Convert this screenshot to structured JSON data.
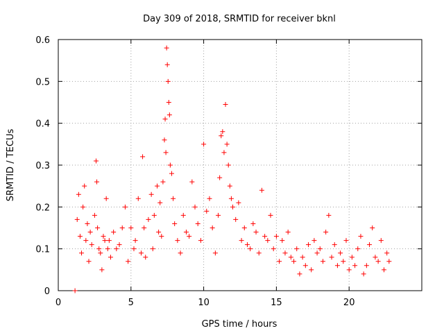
{
  "chart_data": {
    "type": "scatter",
    "title": "Day 309 of 2018, SRMTID for receiver bknl",
    "xlabel": "GPS time / hours",
    "ylabel": "SRMTID / TECUs",
    "xlim": [
      0,
      25
    ],
    "ylim": [
      0,
      0.6
    ],
    "xticks": [
      0,
      5,
      10,
      15,
      20
    ],
    "xtick_labels": [
      "0",
      "5",
      "10",
      "15",
      "20"
    ],
    "yticks": [
      0,
      0.1,
      0.2,
      0.3,
      0.4,
      0.5,
      0.6
    ],
    "ytick_labels": [
      "0",
      "0.1",
      "0.2",
      "0.3",
      "0.4",
      "0.5",
      "0.6"
    ],
    "grid": true,
    "marker": "+",
    "color": "#ff0000",
    "series": [
      {
        "name": "SRMTID",
        "x": [
          1.15,
          1.3,
          1.4,
          1.5,
          1.6,
          1.7,
          1.8,
          1.9,
          2.0,
          2.1,
          2.2,
          2.3,
          2.5,
          2.6,
          2.65,
          2.7,
          2.8,
          2.9,
          3.0,
          3.1,
          3.2,
          3.3,
          3.4,
          3.5,
          3.6,
          3.8,
          4.0,
          4.2,
          4.4,
          4.6,
          4.8,
          5.0,
          5.2,
          5.3,
          5.5,
          5.7,
          5.8,
          5.9,
          6.0,
          6.2,
          6.4,
          6.5,
          6.6,
          6.8,
          6.9,
          7.0,
          7.1,
          7.2,
          7.3,
          7.35,
          7.4,
          7.45,
          7.5,
          7.55,
          7.6,
          7.65,
          7.7,
          7.8,
          7.9,
          8.0,
          8.2,
          8.4,
          8.6,
          8.8,
          9.0,
          9.2,
          9.4,
          9.6,
          9.8,
          10.0,
          10.2,
          10.4,
          10.6,
          10.8,
          11.0,
          11.1,
          11.2,
          11.3,
          11.4,
          11.5,
          11.6,
          11.7,
          11.8,
          11.9,
          12.0,
          12.2,
          12.4,
          12.6,
          12.8,
          13.0,
          13.2,
          13.4,
          13.6,
          13.8,
          14.0,
          14.2,
          14.4,
          14.6,
          14.8,
          15.0,
          15.2,
          15.4,
          15.6,
          15.8,
          16.0,
          16.2,
          16.4,
          16.6,
          16.8,
          17.0,
          17.2,
          17.4,
          17.6,
          17.8,
          18.0,
          18.2,
          18.4,
          18.6,
          18.8,
          19.0,
          19.2,
          19.4,
          19.6,
          19.8,
          20.0,
          20.2,
          20.4,
          20.6,
          20.8,
          21.0,
          21.2,
          21.4,
          21.6,
          21.8,
          22.0,
          22.2,
          22.4,
          22.6,
          22.75
        ],
        "y": [
          0.0,
          0.17,
          0.23,
          0.13,
          0.09,
          0.2,
          0.25,
          0.12,
          0.16,
          0.07,
          0.14,
          0.11,
          0.18,
          0.31,
          0.26,
          0.15,
          0.1,
          0.09,
          0.05,
          0.13,
          0.12,
          0.22,
          0.1,
          0.12,
          0.08,
          0.14,
          0.1,
          0.11,
          0.15,
          0.2,
          0.07,
          0.15,
          0.1,
          0.12,
          0.22,
          0.09,
          0.32,
          0.15,
          0.08,
          0.17,
          0.23,
          0.1,
          0.18,
          0.25,
          0.14,
          0.21,
          0.13,
          0.26,
          0.36,
          0.41,
          0.33,
          0.58,
          0.54,
          0.5,
          0.45,
          0.42,
          0.3,
          0.28,
          0.22,
          0.16,
          0.12,
          0.09,
          0.18,
          0.14,
          0.13,
          0.26,
          0.2,
          0.16,
          0.12,
          0.35,
          0.19,
          0.22,
          0.15,
          0.09,
          0.18,
          0.27,
          0.37,
          0.38,
          0.33,
          0.445,
          0.35,
          0.3,
          0.25,
          0.22,
          0.2,
          0.17,
          0.21,
          0.12,
          0.15,
          0.11,
          0.1,
          0.16,
          0.14,
          0.09,
          0.24,
          0.13,
          0.12,
          0.18,
          0.1,
          0.13,
          0.07,
          0.12,
          0.09,
          0.14,
          0.08,
          0.07,
          0.1,
          0.04,
          0.08,
          0.06,
          0.11,
          0.05,
          0.12,
          0.09,
          0.1,
          0.07,
          0.14,
          0.18,
          0.08,
          0.11,
          0.06,
          0.09,
          0.07,
          0.12,
          0.05,
          0.08,
          0.06,
          0.1,
          0.13,
          0.04,
          0.06,
          0.11,
          0.15,
          0.08,
          0.07,
          0.12,
          0.05,
          0.09,
          0.07
        ]
      }
    ]
  }
}
